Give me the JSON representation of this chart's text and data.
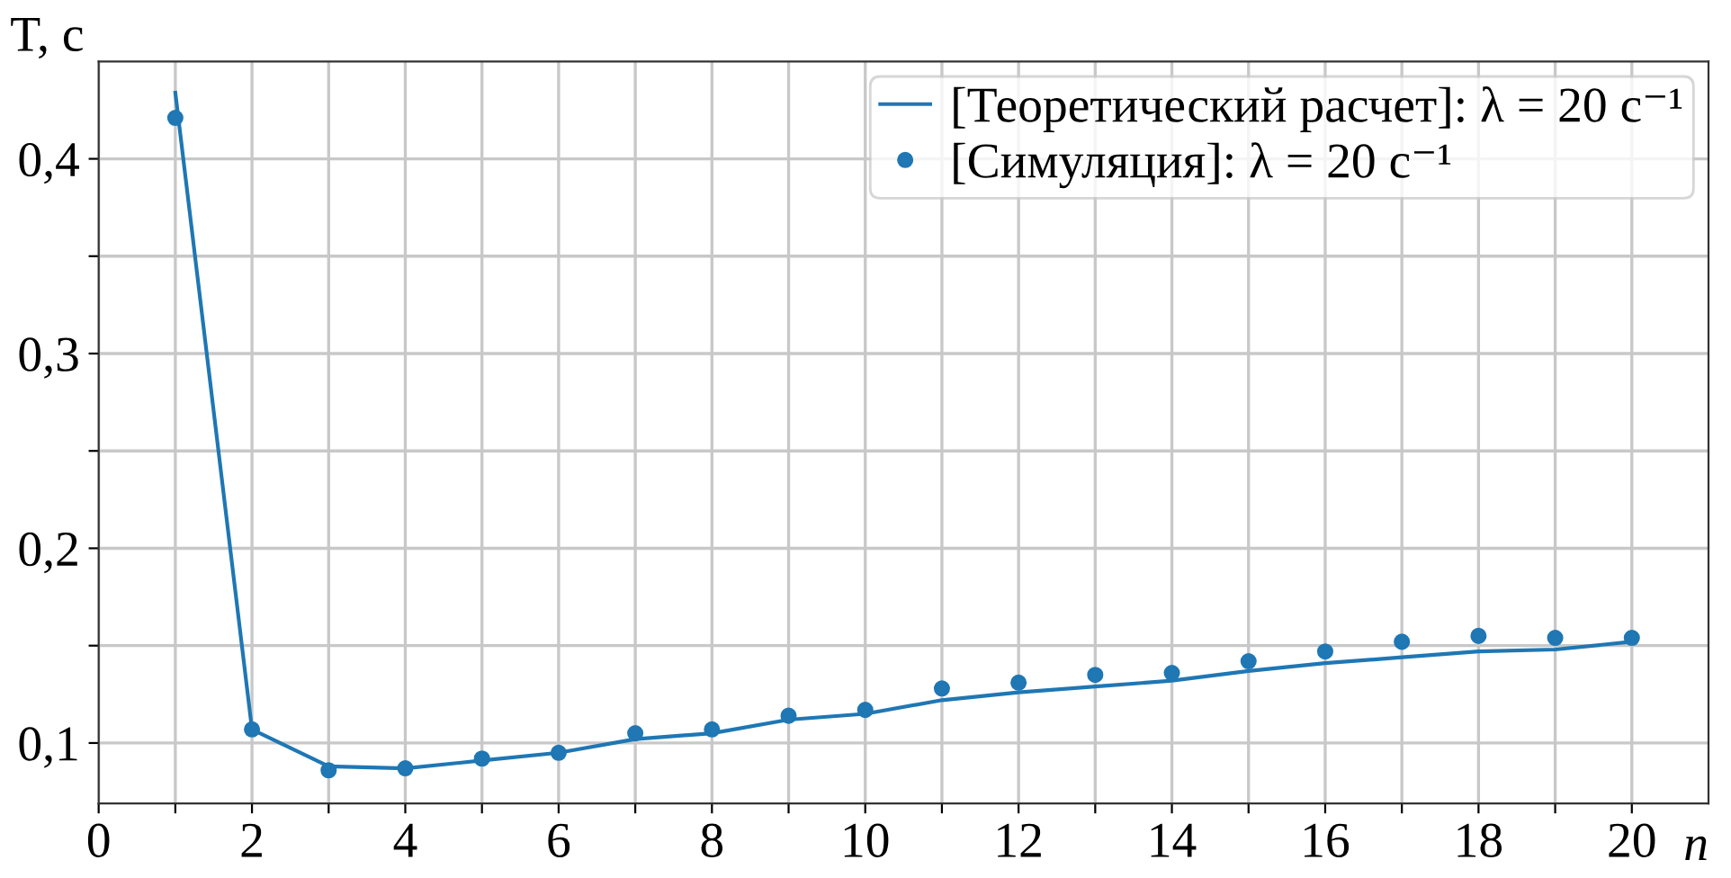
{
  "chart_data": {
    "type": "line",
    "xlabel": "n",
    "ylabel": "T, с",
    "x": [
      1,
      2,
      3,
      4,
      5,
      6,
      7,
      8,
      9,
      10,
      11,
      12,
      13,
      14,
      15,
      16,
      17,
      18,
      19,
      20
    ],
    "series": [
      {
        "name": "[Теоретический расчет]: λ = 20 с⁻¹",
        "color": "#1f77b4",
        "marker": "none",
        "line_style": "solid",
        "values": [
          0.434,
          0.107,
          0.088,
          0.087,
          0.091,
          0.095,
          0.102,
          0.105,
          0.112,
          0.115,
          0.122,
          0.126,
          0.129,
          0.132,
          0.137,
          0.141,
          0.144,
          0.147,
          0.148,
          0.152
        ]
      },
      {
        "name": "[Симуляция]: λ = 20 с⁻¹",
        "type": "scatter",
        "color": "#1f77b4",
        "marker": "circle",
        "values": [
          0.421,
          0.107,
          0.086,
          0.087,
          0.092,
          0.095,
          0.105,
          0.107,
          0.114,
          0.117,
          0.128,
          0.131,
          0.135,
          0.136,
          0.142,
          0.147,
          0.152,
          0.155,
          0.154,
          0.154
        ]
      }
    ],
    "xlim": [
      0,
      21
    ],
    "xticks": [
      0,
      {
        "value": 1,
        "label": null
      },
      2,
      {
        "value": 3,
        "label": null
      },
      4,
      {
        "value": 5,
        "label": null
      },
      6,
      {
        "value": 7,
        "label": null
      },
      8,
      {
        "value": 9,
        "label": null
      },
      10,
      {
        "value": 11,
        "label": null
      },
      12,
      {
        "value": 13,
        "label": null
      },
      14,
      {
        "value": 15,
        "label": null
      },
      16,
      {
        "value": 17,
        "label": null
      },
      18,
      {
        "value": 19,
        "label": null
      },
      20
    ],
    "ylim": [
      0.069,
      0.45
    ],
    "yticks": [
      {
        "value": 0.1,
        "label": "0,1"
      },
      {
        "value": 0.15,
        "label": null
      },
      {
        "value": 0.2,
        "label": "0,2"
      },
      {
        "value": 0.25,
        "label": null
      },
      {
        "value": 0.3,
        "label": "0,3"
      },
      {
        "value": 0.35,
        "label": null
      },
      {
        "value": 0.4,
        "label": "0,4"
      }
    ],
    "grid": true,
    "legend": "top right"
  }
}
